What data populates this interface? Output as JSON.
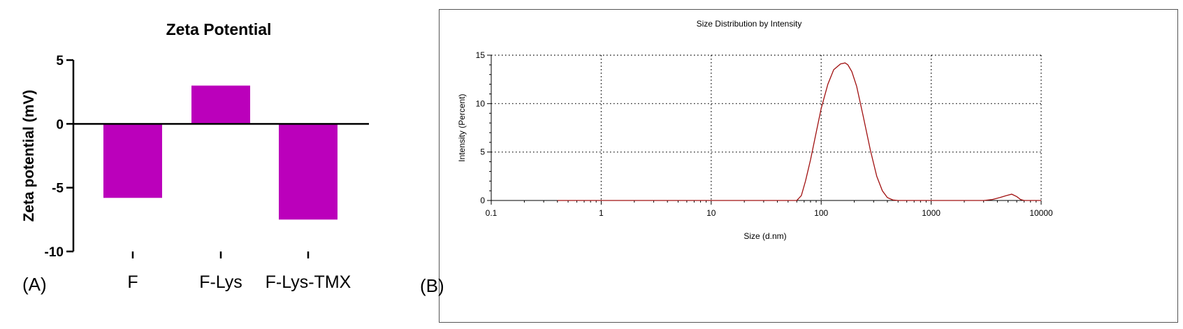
{
  "chart_data": [
    {
      "panel_label": "(A)",
      "type": "bar",
      "title": "Zeta Potential",
      "ylabel": "Zeta potential (mV)",
      "xlabel": "",
      "categories": [
        "F",
        "F-Lys",
        "F-Lys-TMX"
      ],
      "values": [
        -5.8,
        3.0,
        -7.5
      ],
      "ylim": [
        -10,
        5
      ],
      "yticks": [
        "5",
        "0",
        "-5",
        "-10"
      ],
      "bar_color": "#bb00bb",
      "grid": false
    },
    {
      "panel_label": "(B)",
      "type": "line",
      "title": "Size Distribution by Intensity",
      "xlabel": "Size (d.nm)",
      "ylabel": "Intensity (Percent)",
      "x_scale": "log",
      "xlim": [
        0.1,
        10000
      ],
      "ylim": [
        0,
        15
      ],
      "xticks": [
        "0.1",
        "1",
        "10",
        "100",
        "1000",
        "10000"
      ],
      "yticks": [
        "0",
        "5",
        "10",
        "15"
      ],
      "grid": true,
      "line_color": "#a01010",
      "series": [
        {
          "x": [
            0.4,
            1,
            10,
            50,
            60,
            66,
            72,
            80,
            90,
            100,
            115,
            130,
            150,
            165,
            175,
            190,
            210,
            240,
            280,
            320,
            360,
            400,
            450,
            500,
            800,
            1500,
            3000,
            3600,
            4200,
            4800,
            5400,
            6000,
            6500,
            7000,
            10000
          ],
          "y": [
            0,
            0,
            0,
            0,
            0,
            0.5,
            2.0,
            4.2,
            7.0,
            9.5,
            12.0,
            13.5,
            14.1,
            14.2,
            14.0,
            13.3,
            11.8,
            8.8,
            5.2,
            2.5,
            1.0,
            0.3,
            0.05,
            0,
            0,
            0,
            0,
            0.1,
            0.3,
            0.5,
            0.65,
            0.4,
            0.1,
            0,
            0
          ]
        }
      ]
    }
  ]
}
